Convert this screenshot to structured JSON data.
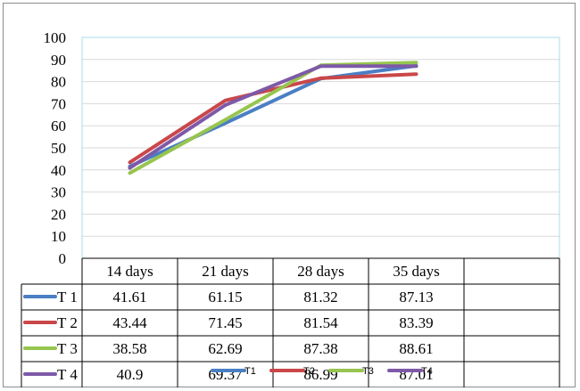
{
  "chart_data": {
    "type": "line",
    "title": "",
    "xlabel": "",
    "ylabel": "",
    "categories": [
      "14 days",
      "21 days",
      "28 days",
      "35 days"
    ],
    "ylim": [
      0,
      100
    ],
    "yticks": [
      0,
      10,
      20,
      30,
      40,
      50,
      60,
      70,
      80,
      90,
      100
    ],
    "grid": "horizontal",
    "legend": "bottom",
    "data_table": true,
    "series": [
      {
        "name": "T1",
        "color": "#4a7fc4",
        "values": [
          41.61,
          61.15,
          81.32,
          87.13
        ],
        "labels": [
          "41.61",
          "61.15",
          "81.32",
          "87.13"
        ]
      },
      {
        "name": "T2",
        "color": "#c9474a",
        "values": [
          43.44,
          71.45,
          81.54,
          83.39
        ],
        "labels": [
          "43.44",
          "71.45",
          "81.54",
          "83.39"
        ]
      },
      {
        "name": "T3",
        "color": "#97c54f",
        "values": [
          38.58,
          62.69,
          87.38,
          88.61
        ],
        "labels": [
          "38.58",
          "62.69",
          "87.38",
          "88.61"
        ]
      },
      {
        "name": "T4",
        "color": "#7e59a8",
        "values": [
          40.9,
          69.37,
          86.99,
          87.01
        ],
        "labels": [
          "40.9",
          "69.37",
          "86.99",
          "87.01"
        ]
      }
    ]
  }
}
